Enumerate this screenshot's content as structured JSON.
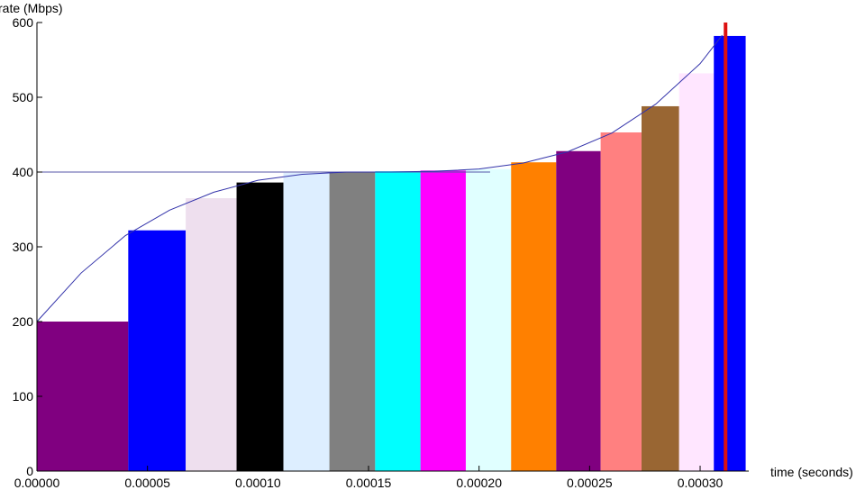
{
  "chart_data": {
    "type": "bar",
    "xlabel": "time (seconds)",
    "ylabel": "rate (Mbps)",
    "xlim": [
      0,
      0.000322
    ],
    "ylim": [
      0,
      600
    ],
    "grid": false,
    "x_ticks": [
      {
        "value": 0.0,
        "label": "0.00000"
      },
      {
        "value": 5e-05,
        "label": "0.00005"
      },
      {
        "value": 0.0001,
        "label": "0.00010"
      },
      {
        "value": 0.00015,
        "label": "0.00015"
      },
      {
        "value": 0.0002,
        "label": "0.00020"
      },
      {
        "value": 0.00025,
        "label": "0.00025"
      },
      {
        "value": 0.0003,
        "label": "0.00030"
      }
    ],
    "y_ticks": [
      {
        "value": 0,
        "label": "0"
      },
      {
        "value": 100,
        "label": "100"
      },
      {
        "value": 200,
        "label": "200"
      },
      {
        "value": 300,
        "label": "300"
      },
      {
        "value": 400,
        "label": "400"
      },
      {
        "value": 500,
        "label": "500"
      },
      {
        "value": 600,
        "label": "600"
      }
    ],
    "bars": [
      {
        "x0": 0.0,
        "x1": 4.13e-05,
        "value": 200,
        "color": "#800080"
      },
      {
        "x0": 4.13e-05,
        "x1": 6.73e-05,
        "value": 322,
        "color": "#0000ff"
      },
      {
        "x0": 6.73e-05,
        "x1": 9.03e-05,
        "value": 365,
        "color": "#eedfee"
      },
      {
        "x0": 9.03e-05,
        "x1": 0.0001115,
        "value": 386,
        "color": "#000000"
      },
      {
        "x0": 0.0001115,
        "x1": 0.0001323,
        "value": 399,
        "color": "#ddeeff"
      },
      {
        "x0": 0.0001323,
        "x1": 0.000153,
        "value": 400,
        "color": "#808080"
      },
      {
        "x0": 0.000153,
        "x1": 0.0001735,
        "value": 401,
        "color": "#00ffff"
      },
      {
        "x0": 0.0001735,
        "x1": 0.000194,
        "value": 402,
        "color": "#ff00ff"
      },
      {
        "x0": 0.000194,
        "x1": 0.0002145,
        "value": 404,
        "color": "#e0ffff"
      },
      {
        "x0": 0.0002145,
        "x1": 0.0002349,
        "value": 413,
        "color": "#ff8000"
      },
      {
        "x0": 0.0002349,
        "x1": 0.000255,
        "value": 428,
        "color": "#800080"
      },
      {
        "x0": 0.000255,
        "x1": 0.0002735,
        "value": 453,
        "color": "#ff8080"
      },
      {
        "x0": 0.0002735,
        "x1": 0.0002905,
        "value": 488,
        "color": "#996633"
      },
      {
        "x0": 0.0002905,
        "x1": 0.0003062,
        "value": 532,
        "color": "#ffe6ff"
      },
      {
        "x0": 0.0003062,
        "x1": 0.0003206,
        "value": 582,
        "color": "#0000ff"
      }
    ],
    "curve": {
      "color": "#3333aa",
      "x": [
        0,
        2e-05,
        4e-05,
        6e-05,
        8e-05,
        0.0001,
        0.00012,
        0.00014,
        0.00016,
        0.00018,
        0.0002,
        0.00022,
        0.00024,
        0.00026,
        0.00028,
        0.0003,
        0.00031
      ],
      "y": [
        200,
        265,
        315,
        349,
        373,
        389,
        397,
        400,
        400,
        401,
        404,
        412,
        427,
        452,
        491,
        545,
        583
      ]
    },
    "reference_line": {
      "value": 400,
      "color": "#5555aa"
    },
    "marker_line": {
      "x": 0.0003115,
      "color": "#dd1111"
    }
  }
}
